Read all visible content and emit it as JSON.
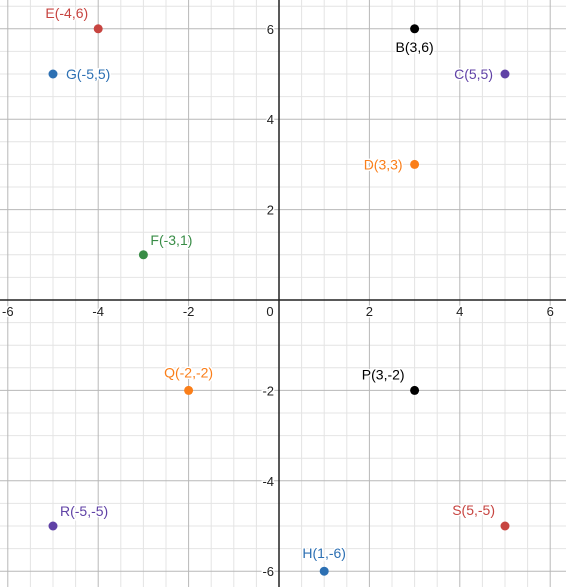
{
  "chart_data": {
    "type": "scatter",
    "title": "",
    "xlabel": "",
    "ylabel": "",
    "xlim": [
      -6.1,
      6.4
    ],
    "ylim": [
      -6.3,
      6.6
    ],
    "grid": true,
    "x_ticks": [
      -6,
      -4,
      -2,
      0,
      2,
      4,
      6
    ],
    "y_ticks": [
      -6,
      -4,
      -2,
      2,
      4,
      6
    ],
    "x_tick_labels": [
      "-6",
      "-4",
      "-2",
      "0",
      "2",
      "4",
      "6"
    ],
    "y_tick_labels": [
      "-6",
      "-4",
      "-2",
      "2",
      "4",
      "6"
    ],
    "points": [
      {
        "label": "E(-4,6)",
        "x": -4,
        "y": 6,
        "color": "#c74440",
        "label_side": "top-left"
      },
      {
        "label": "B(3,6)",
        "x": 3,
        "y": 6,
        "color": "#000000",
        "label_side": "bottom"
      },
      {
        "label": "G(-5,5)",
        "x": -5,
        "y": 5,
        "color": "#2d70b3",
        "label_side": "right"
      },
      {
        "label": "C(5,5)",
        "x": 5,
        "y": 5,
        "color": "#6042a6",
        "label_side": "left"
      },
      {
        "label": "D(3,3)",
        "x": 3,
        "y": 3,
        "color": "#fa7e19",
        "label_side": "left"
      },
      {
        "label": "F(-3,1)",
        "x": -3,
        "y": 1,
        "color": "#388c46",
        "label_side": "top-right"
      },
      {
        "label": "Q(-2,-2)",
        "x": -2,
        "y": -2,
        "color": "#fa7e19",
        "label_side": "top"
      },
      {
        "label": "P(3,-2)",
        "x": 3,
        "y": -2,
        "color": "#000000",
        "label_side": "top-left"
      },
      {
        "label": "R(-5,-5)",
        "x": -5,
        "y": -5,
        "color": "#6042a6",
        "label_side": "top-right"
      },
      {
        "label": "S(5,-5)",
        "x": 5,
        "y": -5,
        "color": "#c74440",
        "label_side": "top-left"
      },
      {
        "label": "H(1,-6)",
        "x": 1,
        "y": -6,
        "color": "#2d70b3",
        "label_side": "top"
      }
    ]
  }
}
